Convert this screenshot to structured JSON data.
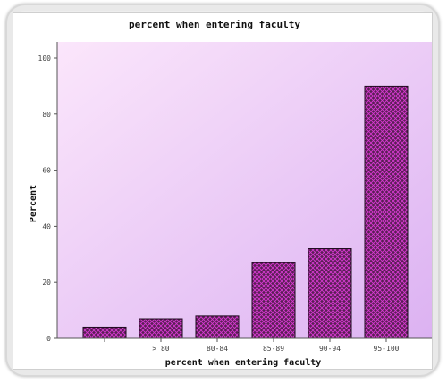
{
  "chart_data": {
    "type": "bar",
    "title": "percent  when entering faculty",
    "xlabel": "percent  when entering faculty",
    "ylabel": "Percent",
    "categories": [
      "",
      "> 80",
      "80-84",
      "85-89",
      "90-94",
      "95-100"
    ],
    "values": [
      4,
      7,
      8,
      27,
      32,
      90
    ],
    "ylim": [
      0,
      100
    ],
    "yticks": [
      "0",
      "20",
      "40",
      "60",
      "80",
      "100"
    ],
    "grid": false,
    "legend": "none",
    "colors": {
      "bar_fill": "#5a1e55",
      "bar_pattern": "#d63ad0",
      "bar_stroke": "#1e0a1e",
      "plot_bg_light": "#fbe6fb",
      "plot_bg_dark": "#dcb2f2"
    }
  }
}
